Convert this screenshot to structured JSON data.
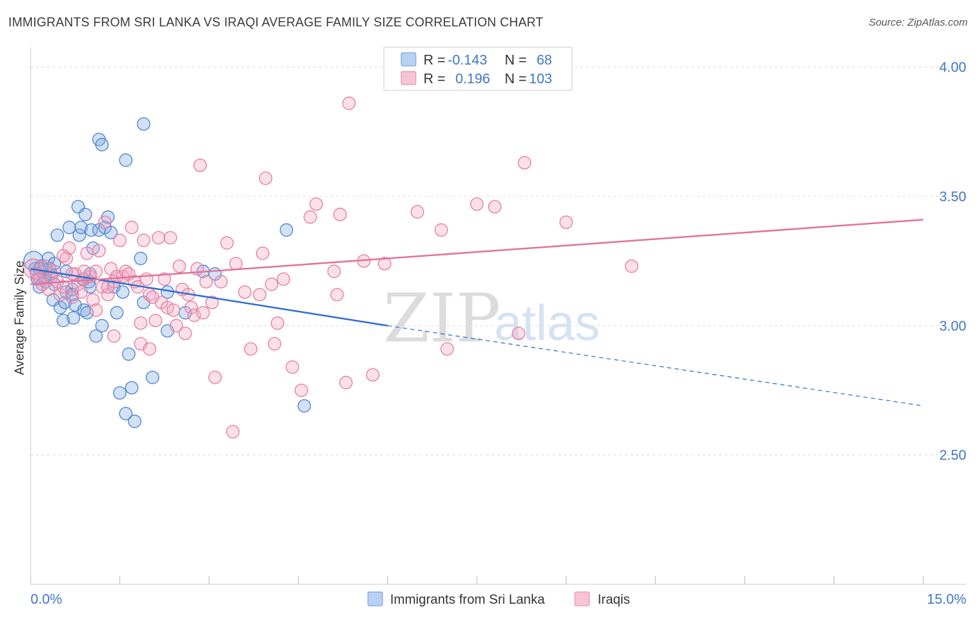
{
  "header": {
    "title": "IMMIGRANTS FROM SRI LANKA VS IRAQI AVERAGE FAMILY SIZE CORRELATION CHART",
    "source": "Source: ZipAtlas.com"
  },
  "watermark": {
    "zip": "ZIP",
    "atlas": "atlas"
  },
  "chart_data": {
    "type": "scatter",
    "title": "IMMIGRANTS FROM SRI LANKA VS IRAQI AVERAGE FAMILY SIZE CORRELATION CHART",
    "xlabel": "",
    "ylabel": "Average Family Size",
    "xlim": [
      0,
      15
    ],
    "ylim": [
      2.0,
      4.05
    ],
    "x_tick_labels": [
      "0.0%",
      "15.0%"
    ],
    "y_ticks": [
      2.5,
      3.0,
      3.5,
      4.0
    ],
    "y_tick_labels": [
      "2.50",
      "3.00",
      "3.50",
      "4.00"
    ],
    "grid": true,
    "legend_placement": "top-center",
    "series": [
      {
        "name": "Immigrants from Sri Lanka",
        "color": "#7fa8e0",
        "stroke": "#4f86d2",
        "r_label": "R =",
        "r_value": "-0.143",
        "n_label": "N =",
        "n_value": "68",
        "trend": {
          "x0": 0.0,
          "y0": 3.22,
          "x1": 6.0,
          "y1": 3.0,
          "dash_to_x": 15.0,
          "dash_to_y": 2.69
        },
        "points": [
          [
            0.05,
            3.25
          ],
          [
            0.08,
            3.22
          ],
          [
            0.1,
            3.2
          ],
          [
            0.12,
            3.18
          ],
          [
            0.15,
            3.15
          ],
          [
            0.18,
            3.23
          ],
          [
            0.2,
            3.21
          ],
          [
            0.22,
            3.19
          ],
          [
            0.25,
            3.17
          ],
          [
            0.3,
            3.26
          ],
          [
            0.32,
            3.22
          ],
          [
            0.35,
            3.2
          ],
          [
            0.38,
            3.1
          ],
          [
            0.4,
            3.16
          ],
          [
            0.45,
            3.35
          ],
          [
            0.5,
            3.07
          ],
          [
            0.55,
            3.02
          ],
          [
            0.58,
            3.09
          ],
          [
            0.6,
            3.13
          ],
          [
            0.65,
            3.38
          ],
          [
            0.7,
            3.14
          ],
          [
            0.72,
            3.03
          ],
          [
            0.75,
            3.08
          ],
          [
            0.8,
            3.46
          ],
          [
            0.82,
            3.35
          ],
          [
            0.85,
            3.38
          ],
          [
            0.88,
            3.18
          ],
          [
            0.9,
            3.06
          ],
          [
            0.92,
            3.43
          ],
          [
            0.95,
            3.05
          ],
          [
            0.98,
            3.17
          ],
          [
            1.0,
            3.15
          ],
          [
            1.02,
            3.37
          ],
          [
            1.05,
            3.3
          ],
          [
            1.1,
            2.96
          ],
          [
            1.15,
            3.37
          ],
          [
            1.2,
            3.0
          ],
          [
            1.25,
            3.38
          ],
          [
            1.3,
            3.42
          ],
          [
            1.35,
            3.36
          ],
          [
            1.4,
            3.15
          ],
          [
            1.45,
            3.05
          ],
          [
            1.5,
            2.74
          ],
          [
            1.55,
            3.13
          ],
          [
            1.6,
            2.66
          ],
          [
            1.65,
            2.89
          ],
          [
            1.7,
            2.76
          ],
          [
            1.75,
            2.63
          ],
          [
            1.15,
            3.72
          ],
          [
            1.2,
            3.7
          ],
          [
            1.6,
            3.64
          ],
          [
            1.9,
            3.78
          ],
          [
            1.85,
            3.26
          ],
          [
            1.9,
            3.09
          ],
          [
            2.05,
            2.8
          ],
          [
            2.3,
            3.13
          ],
          [
            2.3,
            2.98
          ],
          [
            2.6,
            3.05
          ],
          [
            2.9,
            3.21
          ],
          [
            3.1,
            3.2
          ],
          [
            4.3,
            3.37
          ],
          [
            4.6,
            2.69
          ],
          [
            0.4,
            3.24
          ],
          [
            0.6,
            3.21
          ],
          [
            0.7,
            3.12
          ],
          [
            1.0,
            3.2
          ],
          [
            0.25,
            3.19
          ],
          [
            0.15,
            3.22
          ]
        ]
      },
      {
        "name": "Iraqis",
        "color": "#f4a6c0",
        "stroke": "#e57fa0",
        "r_label": "R =",
        "r_value": "0.196",
        "n_label": "N =",
        "n_value": "103",
        "trend": {
          "x0": 0.0,
          "y0": 3.16,
          "x1": 15.0,
          "y1": 3.41
        },
        "points": [
          [
            0.05,
            3.22
          ],
          [
            0.1,
            3.2
          ],
          [
            0.15,
            3.18
          ],
          [
            0.2,
            3.16
          ],
          [
            0.25,
            3.23
          ],
          [
            0.3,
            3.14
          ],
          [
            0.35,
            3.19
          ],
          [
            0.4,
            3.21
          ],
          [
            0.45,
            3.17
          ],
          [
            0.5,
            3.12
          ],
          [
            0.55,
            3.15
          ],
          [
            0.6,
            3.26
          ],
          [
            0.65,
            3.3
          ],
          [
            0.7,
            3.11
          ],
          [
            0.75,
            3.2
          ],
          [
            0.8,
            3.16
          ],
          [
            0.85,
            3.13
          ],
          [
            0.9,
            3.18
          ],
          [
            0.95,
            3.28
          ],
          [
            1.0,
            3.19
          ],
          [
            1.05,
            3.1
          ],
          [
            1.1,
            3.21
          ],
          [
            1.15,
            3.29
          ],
          [
            1.2,
            3.15
          ],
          [
            1.25,
            3.4
          ],
          [
            1.3,
            3.12
          ],
          [
            1.35,
            3.22
          ],
          [
            1.4,
            3.17
          ],
          [
            1.45,
            3.19
          ],
          [
            1.5,
            3.33
          ],
          [
            1.55,
            3.19
          ],
          [
            1.6,
            3.21
          ],
          [
            1.65,
            3.2
          ],
          [
            1.7,
            3.38
          ],
          [
            1.75,
            3.17
          ],
          [
            1.8,
            3.15
          ],
          [
            1.85,
            3.01
          ],
          [
            1.9,
            3.33
          ],
          [
            1.95,
            3.18
          ],
          [
            2.0,
            3.12
          ],
          [
            2.05,
            3.11
          ],
          [
            2.1,
            3.02
          ],
          [
            2.15,
            3.34
          ],
          [
            2.2,
            3.09
          ],
          [
            2.25,
            3.18
          ],
          [
            2.3,
            3.07
          ],
          [
            2.35,
            3.34
          ],
          [
            2.4,
            3.06
          ],
          [
            2.45,
            3.0
          ],
          [
            2.5,
            3.23
          ],
          [
            2.55,
            3.14
          ],
          [
            2.6,
            2.97
          ],
          [
            2.65,
            3.12
          ],
          [
            2.7,
            3.07
          ],
          [
            2.75,
            3.04
          ],
          [
            2.8,
            3.22
          ],
          [
            2.85,
            3.62
          ],
          [
            2.9,
            3.05
          ],
          [
            2.95,
            3.17
          ],
          [
            3.05,
            3.09
          ],
          [
            3.1,
            2.8
          ],
          [
            3.2,
            3.17
          ],
          [
            3.3,
            3.32
          ],
          [
            3.4,
            2.59
          ],
          [
            3.45,
            3.24
          ],
          [
            3.6,
            3.13
          ],
          [
            3.7,
            2.91
          ],
          [
            3.85,
            3.12
          ],
          [
            3.9,
            3.28
          ],
          [
            3.95,
            3.57
          ],
          [
            4.05,
            3.16
          ],
          [
            4.1,
            2.93
          ],
          [
            4.15,
            3.01
          ],
          [
            4.25,
            3.18
          ],
          [
            4.4,
            2.84
          ],
          [
            4.55,
            2.75
          ],
          [
            4.7,
            3.42
          ],
          [
            4.8,
            3.47
          ],
          [
            5.1,
            3.21
          ],
          [
            5.15,
            3.12
          ],
          [
            5.2,
            3.43
          ],
          [
            5.3,
            2.78
          ],
          [
            5.35,
            3.86
          ],
          [
            5.6,
            3.25
          ],
          [
            5.75,
            2.81
          ],
          [
            5.95,
            3.24
          ],
          [
            6.5,
            3.44
          ],
          [
            6.9,
            3.37
          ],
          [
            7.0,
            2.91
          ],
          [
            7.5,
            3.47
          ],
          [
            7.8,
            3.46
          ],
          [
            8.2,
            2.97
          ],
          [
            8.3,
            3.63
          ],
          [
            9.0,
            3.4
          ],
          [
            10.1,
            3.23
          ],
          [
            1.85,
            2.93
          ],
          [
            0.9,
            3.21
          ],
          [
            1.3,
            3.15
          ],
          [
            2.0,
            2.91
          ],
          [
            1.1,
            3.06
          ],
          [
            0.55,
            3.27
          ],
          [
            0.7,
            3.2
          ],
          [
            1.4,
            2.96
          ]
        ]
      }
    ]
  }
}
